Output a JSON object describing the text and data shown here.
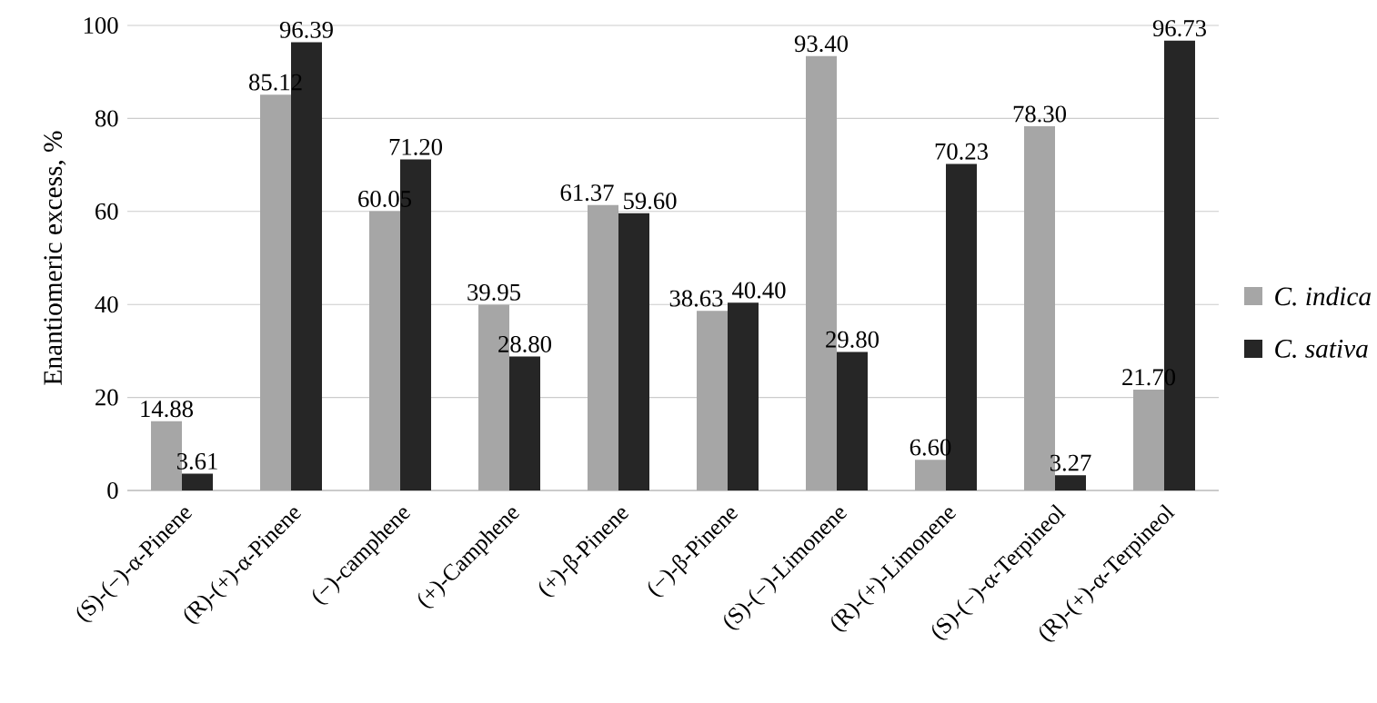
{
  "chart_data": {
    "type": "bar",
    "ylabel": "Enantiomeric excess, %",
    "categories": [
      "(S)-(−)-α-Pinene",
      "(R)-(+)-α-Pinene",
      "(−)-camphene",
      "(+)-Camphene",
      "(+)-β-Pinene",
      "(−)-β-Pinene",
      "(S)-(−)-Limonene",
      "(R)-(+)-Limonene",
      "(S)-(−)-α-Terpineol",
      "(R)-(+)-α-Terpineol"
    ],
    "series": [
      {
        "name": "C. indica",
        "color": "#a6a6a6",
        "values": [
          14.88,
          85.12,
          60.05,
          39.95,
          61.37,
          38.63,
          93.4,
          6.6,
          78.3,
          21.7
        ],
        "value_labels": [
          "14.88",
          "85.12",
          "60.05",
          "39.95",
          "61.37",
          "38.63",
          "93.40",
          "6.60",
          "78.30",
          "21.70"
        ]
      },
      {
        "name": "C. sativa",
        "color": "#262626",
        "values": [
          3.61,
          96.39,
          71.2,
          28.8,
          59.6,
          40.4,
          29.8,
          70.23,
          3.27,
          96.73
        ],
        "value_labels": [
          "3.61",
          "96.39",
          "71.20",
          "28.80",
          "59.60",
          "40.40",
          "29.80",
          "70.23",
          "3.27",
          "96.73"
        ]
      }
    ],
    "ylim": [
      0,
      100
    ],
    "yticks": [
      0,
      20,
      40,
      60,
      80,
      100
    ],
    "grid": "y",
    "legend": "right"
  }
}
